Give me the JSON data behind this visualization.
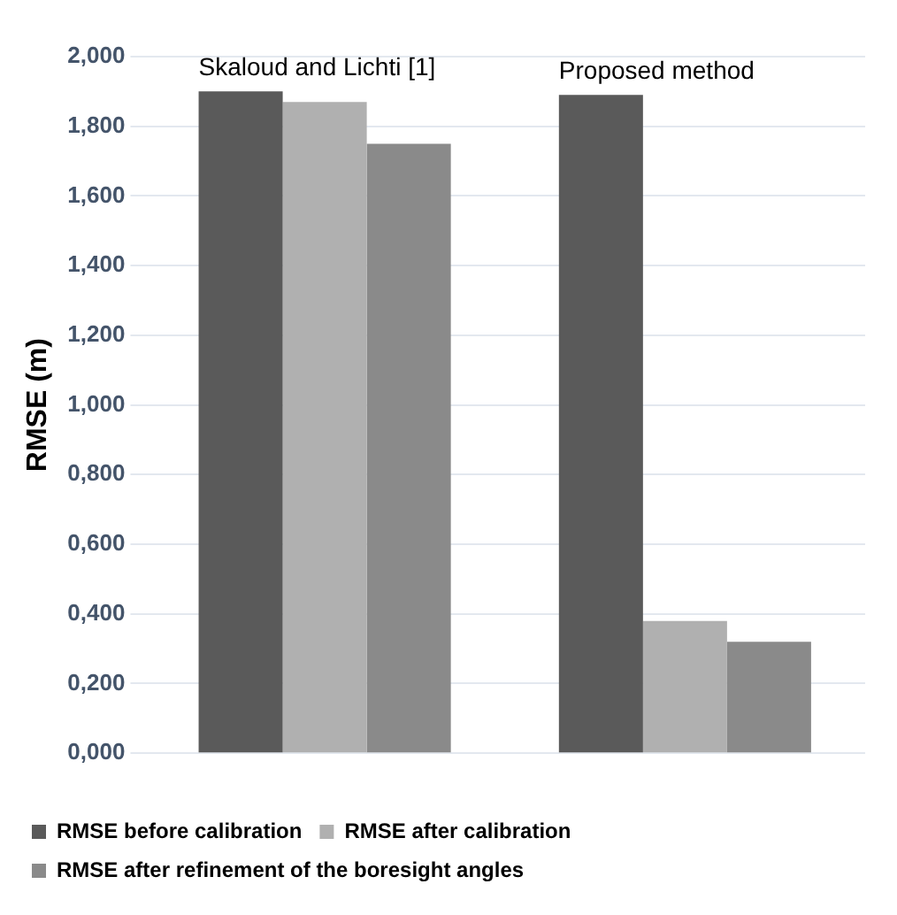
{
  "chart_data": {
    "type": "bar",
    "ylabel": "RMSE (m)",
    "categories": [
      null,
      null
    ],
    "series": [
      {
        "name": "RMSE before calibration",
        "color": "#5a5a5a",
        "values": [
          1.9,
          1.89
        ]
      },
      {
        "name": "RMSE after calibration",
        "color": "#b0b0b0",
        "values": [
          1.87,
          0.38
        ]
      },
      {
        "name": "RMSE after refinement of the boresight angles",
        "color": "#8a8a8a",
        "values": [
          1.75,
          0.32
        ]
      }
    ],
    "annotations": [
      "Skaloud and Lichti [1]",
      "Proposed method"
    ],
    "ylim": [
      0,
      2
    ],
    "yticks": [
      {
        "value": 0,
        "label": "0,000"
      },
      {
        "value": 0.2,
        "label": "0,200"
      },
      {
        "value": 0.4,
        "label": "0,400"
      },
      {
        "value": 0.6,
        "label": "0,600"
      },
      {
        "value": 0.8,
        "label": "0,800"
      },
      {
        "value": 1,
        "label": "1,000"
      },
      {
        "value": 1.2,
        "label": "1,200"
      },
      {
        "value": 1.4,
        "label": "1,400"
      },
      {
        "value": 1.6,
        "label": "1,600"
      },
      {
        "value": 1.8,
        "label": "1,800"
      },
      {
        "value": 2,
        "label": "2,000"
      }
    ],
    "grid": "y",
    "legend": "bottom"
  }
}
